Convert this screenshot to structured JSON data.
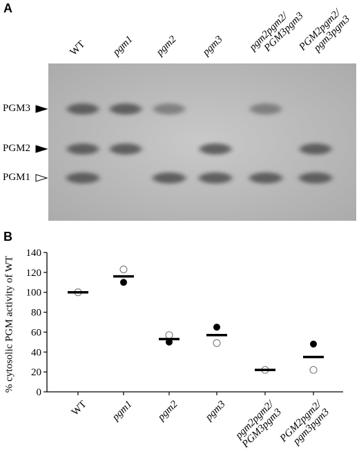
{
  "panel_a": {
    "letter": "A",
    "lanes": [
      {
        "label": "WT",
        "italic": false,
        "line1": "WT",
        "line2": ""
      },
      {
        "label": "pgm1",
        "italic": true,
        "line1": "pgm1",
        "line2": ""
      },
      {
        "label": "pgm2",
        "italic": true,
        "line1": "pgm2",
        "line2": ""
      },
      {
        "label": "pgm3",
        "italic": true,
        "line1": "pgm3",
        "line2": ""
      },
      {
        "label": "pgm2pgm2/PGM3pgm3",
        "italic": true,
        "line1": "pgm2pgm2/",
        "line2": "PGM3pgm3"
      },
      {
        "label": "PGM2pgm2/pgm3pgm3",
        "italic": true,
        "line1": "PGM2pgm2/",
        "line2": "pgm3pgm3"
      }
    ],
    "band_labels": [
      "PGM3",
      "PGM2",
      "PGM1"
    ],
    "band_marker_colors": [
      "#000000",
      "#000000",
      "open"
    ],
    "gel_bands": {
      "PGM3": [
        1,
        1,
        1,
        0,
        1,
        0
      ],
      "PGM2": [
        1,
        1,
        0,
        1,
        0,
        1
      ],
      "PGM1": [
        1,
        0,
        1,
        1,
        1,
        1
      ]
    }
  },
  "panel_b": {
    "letter": "B",
    "chart_data": {
      "type": "scatter",
      "categories": [
        "WT",
        "pgm1",
        "pgm2",
        "pgm3",
        "pgm2pgm2/PGM3pgm3",
        "PGM2pgm2/pgm3pgm3"
      ],
      "series": [
        {
          "marker": "filled-circle",
          "values": [
            100,
            110,
            50,
            65,
            22,
            48
          ]
        },
        {
          "marker": "open-circle",
          "values": [
            100,
            123,
            57,
            49,
            22,
            22
          ]
        },
        {
          "marker": "mean-bar",
          "values": [
            100,
            116,
            53,
            57,
            22,
            35
          ]
        }
      ],
      "ylabel": "% cytosolic PGM activity of WT",
      "ylim": [
        0,
        140
      ],
      "yticks": [
        0,
        20,
        40,
        60,
        80,
        100,
        120,
        140
      ],
      "grid": false
    },
    "tick_label_lines": [
      [
        "WT",
        ""
      ],
      [
        "pgm1",
        ""
      ],
      [
        "pgm2",
        ""
      ],
      [
        "pgm3",
        ""
      ],
      [
        "pgm2pgm2/",
        "PGM3pgm3"
      ],
      [
        "PGM2pgm2/",
        "pgm3pgm3"
      ]
    ],
    "tick_label_italic": [
      false,
      true,
      true,
      true,
      true,
      true
    ]
  }
}
